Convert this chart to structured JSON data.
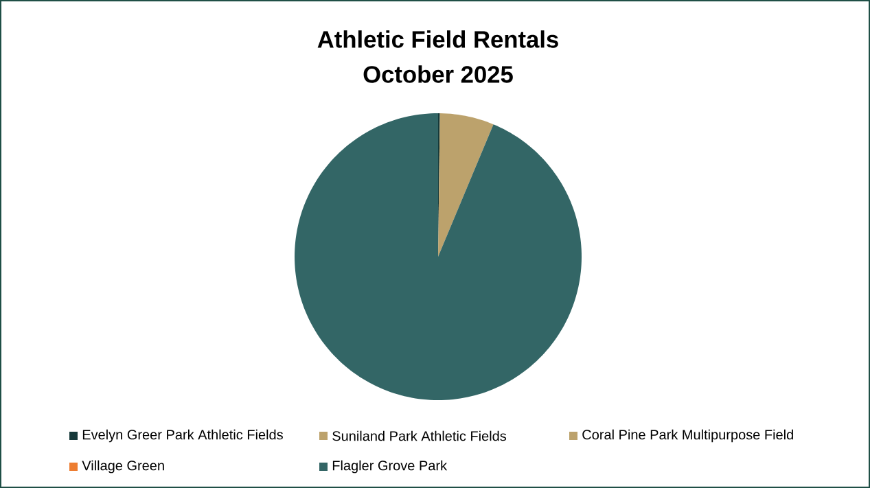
{
  "chart_data": {
    "type": "pie",
    "title": "Athletic Field Rentals",
    "subtitle": "October 2025",
    "categories": [
      "Evelyn Greer Park Athletic Fields",
      "Suniland Park Athletic Fields",
      "Coral Pine Park Multipurpose Field",
      "Village Green",
      "Flagler Grove Park"
    ],
    "values": [
      0.2,
      6.1,
      0,
      0,
      93.7
    ],
    "colors": [
      "#16393a",
      "#bca26c",
      "#bca26c",
      "#ed7d31",
      "#336666"
    ],
    "legend": "bottom"
  }
}
